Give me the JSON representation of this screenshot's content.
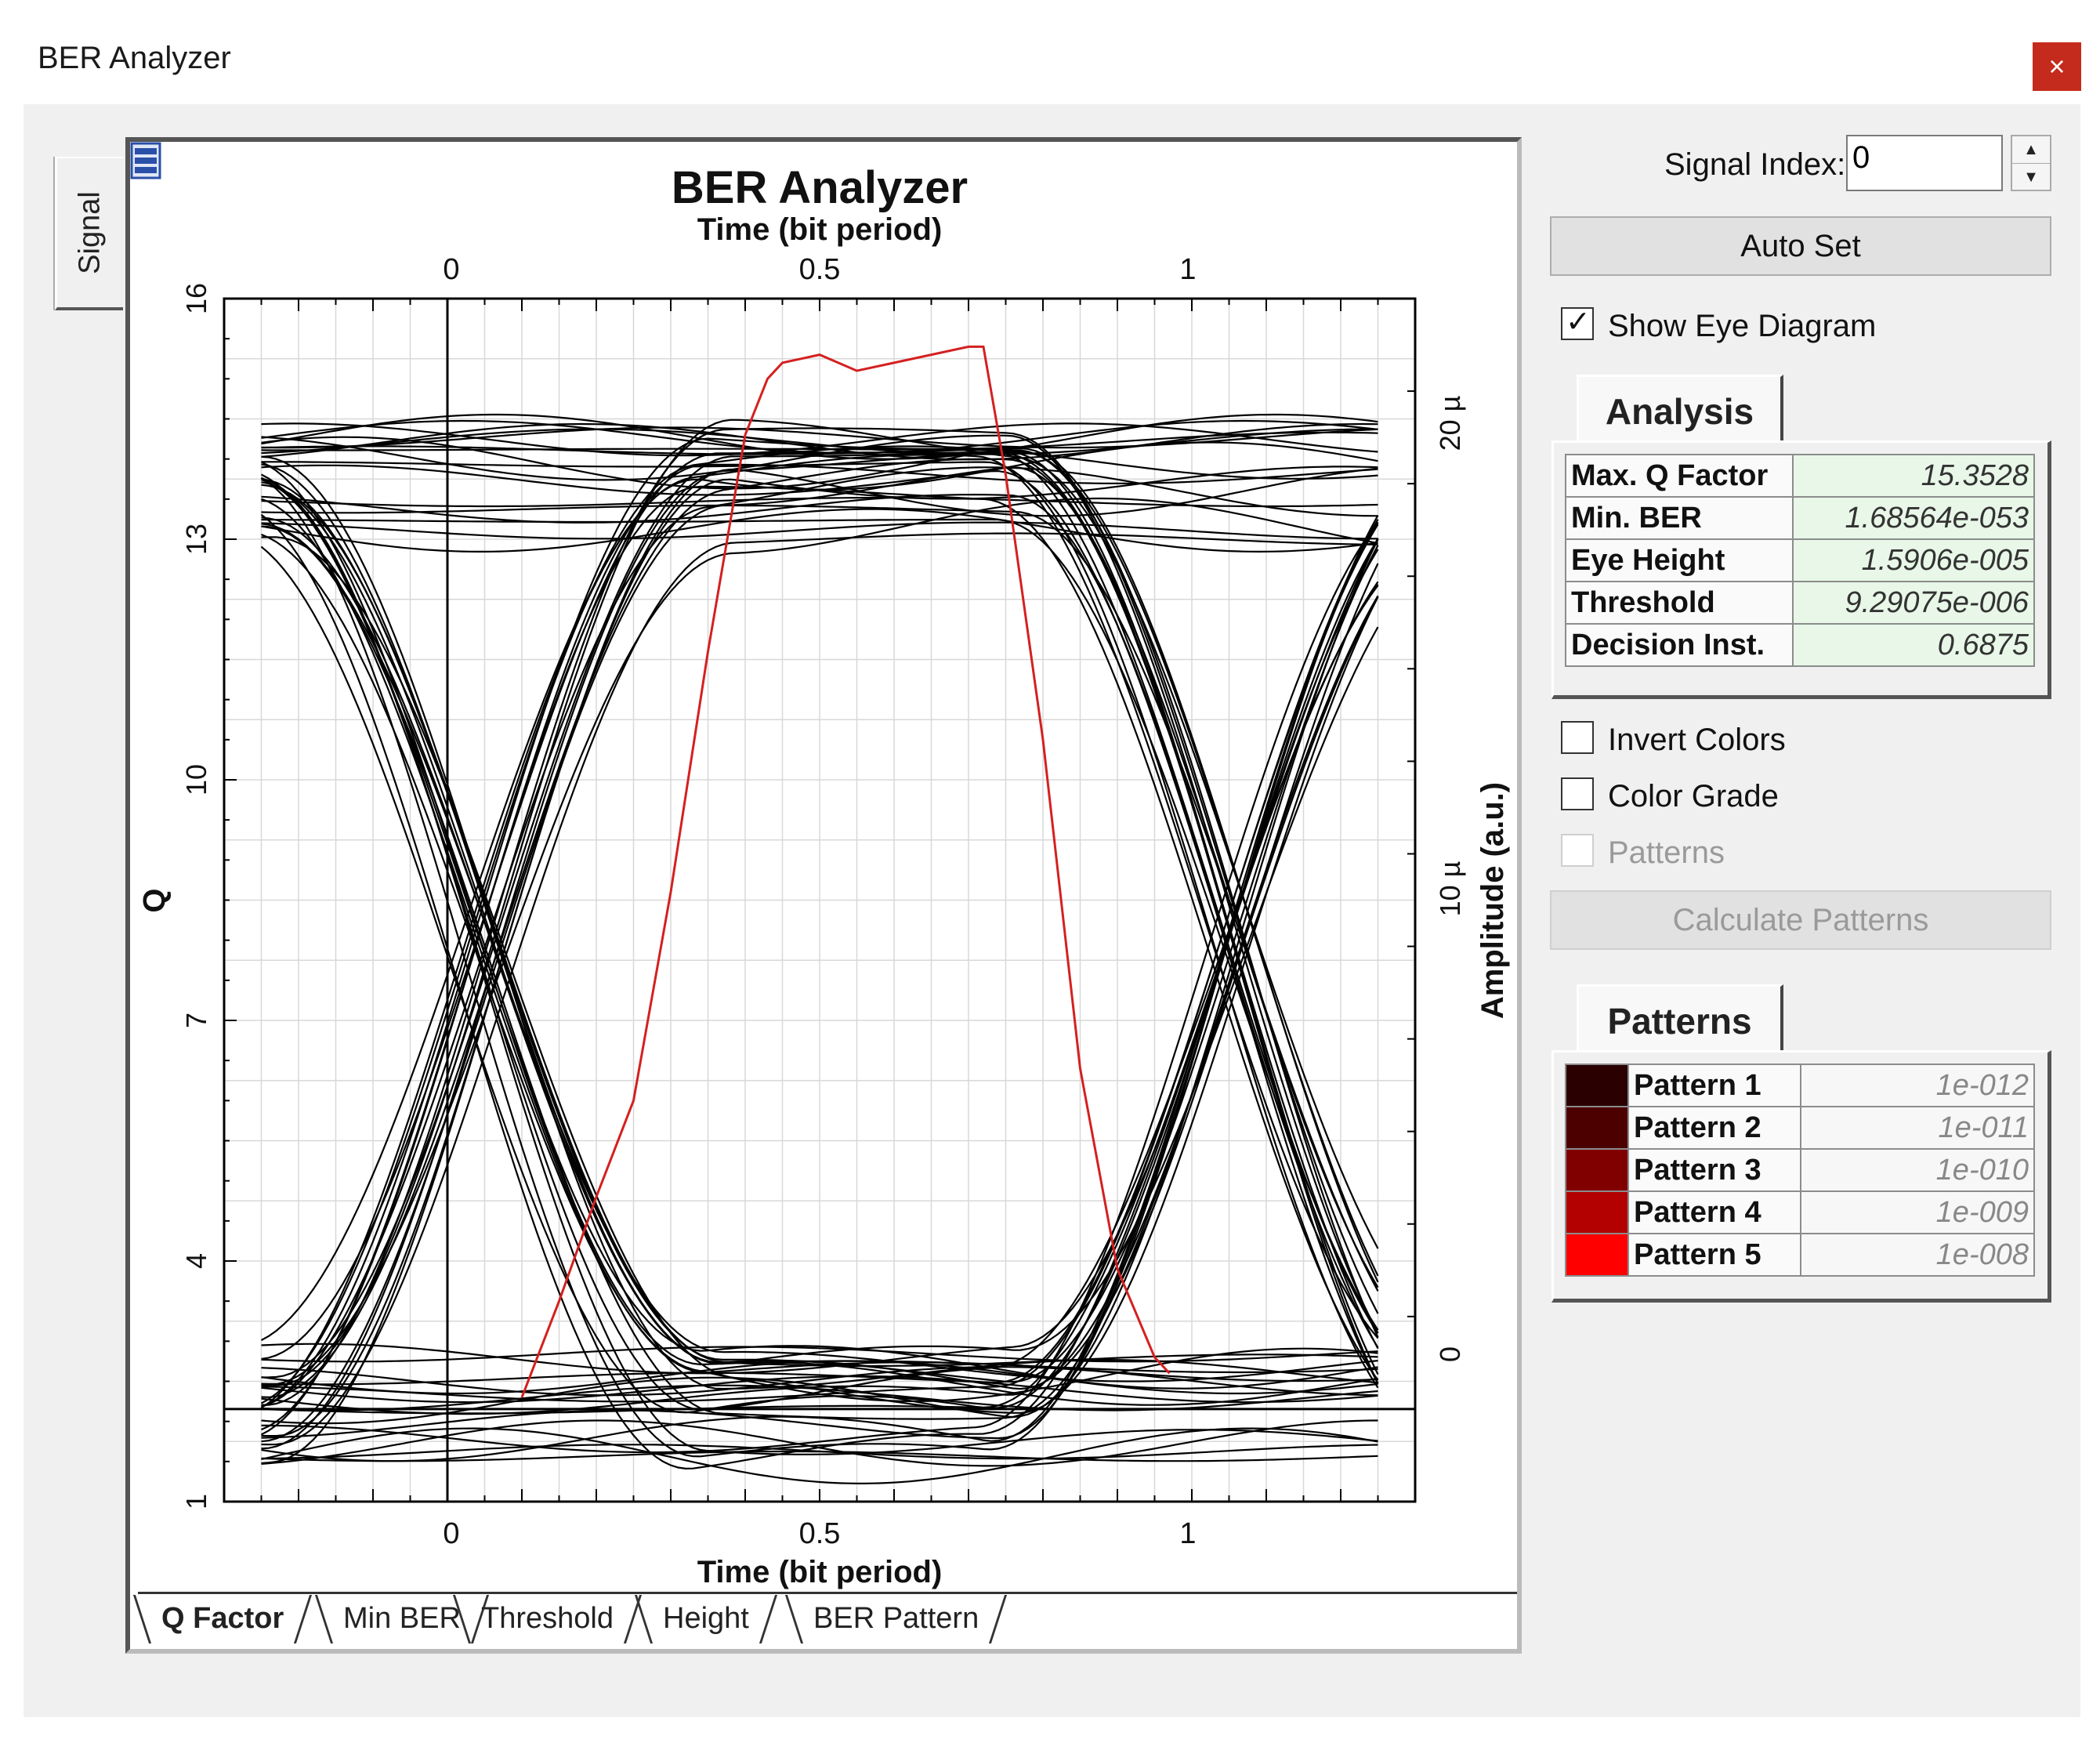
{
  "window": {
    "title": "BER Analyzer",
    "close_glyph": "×"
  },
  "side_tabs": [
    {
      "label": "Signal"
    }
  ],
  "plot": {
    "title": "BER Analyzer",
    "top_axis_label": "Time (bit period)",
    "bottom_axis_label": "Time (bit period)",
    "left_axis_label": "Q",
    "right_axis_label": "Amplitude (a.u.)",
    "x_ticks": [
      "0",
      "0.5",
      "1"
    ],
    "left_ticks": [
      "16",
      "13",
      "10",
      "7",
      "4",
      "1"
    ],
    "right_ticks": [
      "20 µ",
      "10 µ",
      "0"
    ]
  },
  "chart_data": {
    "type": "line",
    "title": "BER Analyzer",
    "xlabel": "Time (bit period)",
    "ylabel": "Q",
    "y2label": "Amplitude (a.u.)",
    "xlim": [
      -0.3,
      1.3
    ],
    "ylim": [
      1,
      16
    ],
    "y2lim": [
      -2e-06,
      2.4e-05
    ],
    "grid": true,
    "series": [
      {
        "name": "Q Factor",
        "color": "#d42020",
        "x": [
          0.1,
          0.15,
          0.2,
          0.25,
          0.3,
          0.35,
          0.4,
          0.43,
          0.45,
          0.5,
          0.55,
          0.6,
          0.65,
          0.7,
          0.72,
          0.75,
          0.8,
          0.85,
          0.9,
          0.95,
          0.97
        ],
        "y": [
          2.3,
          3.5,
          4.8,
          6.0,
          8.6,
          11.6,
          14.3,
          15.0,
          15.2,
          15.3,
          15.1,
          15.2,
          15.3,
          15.4,
          15.4,
          13.8,
          10.5,
          6.4,
          3.9,
          2.8,
          2.6
        ]
      }
    ],
    "eye_diagram": {
      "color": "#000000",
      "level_one_amplitude": 2e-05,
      "level_zero_amplitude": 0,
      "crossing_times": [
        0.05,
        1.05
      ]
    }
  },
  "plot_tabs": [
    "Q Factor",
    "Min BER",
    "Threshold",
    "Height",
    "BER Pattern"
  ],
  "controls": {
    "signal_index_label": "Signal Index:",
    "signal_index_value": "0",
    "auto_set_label": "Auto Set",
    "show_eye_label": "Show Eye Diagram",
    "show_eye_checked": true,
    "invert_colors_label": "Invert Colors",
    "color_grade_label": "Color Grade",
    "patterns_label": "Patterns",
    "calculate_patterns_label": "Calculate Patterns"
  },
  "analysis": {
    "tab_label": "Analysis",
    "rows": [
      {
        "key": "Max. Q Factor",
        "value": "15.3528"
      },
      {
        "key": "Min. BER",
        "value": "1.68564e-053"
      },
      {
        "key": "Eye Height",
        "value": "1.5906e-005"
      },
      {
        "key": "Threshold",
        "value": "9.29075e-006"
      },
      {
        "key": "Decision Inst.",
        "value": "0.6875"
      }
    ]
  },
  "patterns": {
    "tab_label": "Patterns",
    "rows": [
      {
        "name": "Pattern 1",
        "value": "1e-012",
        "color": "#2a0000"
      },
      {
        "name": "Pattern 2",
        "value": "1e-011",
        "color": "#4d0000"
      },
      {
        "name": "Pattern 3",
        "value": "1e-010",
        "color": "#800000"
      },
      {
        "name": "Pattern 4",
        "value": "1e-009",
        "color": "#b30000"
      },
      {
        "name": "Pattern 5",
        "value": "1e-008",
        "color": "#ff0000"
      }
    ]
  }
}
